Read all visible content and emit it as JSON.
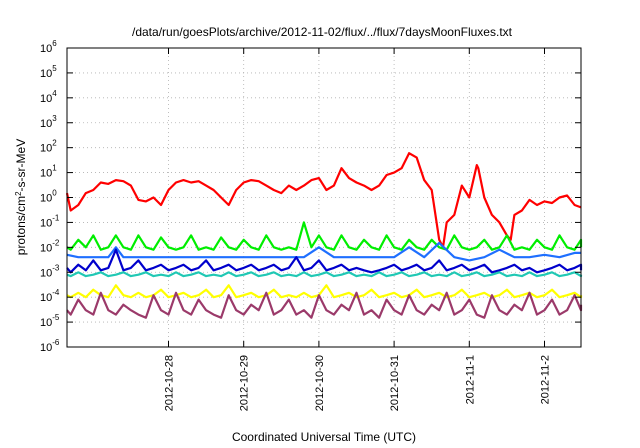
{
  "chart_data": {
    "type": "line",
    "title": "/data/run/goesPlots/archive/2012-11-02/flux/../flux/7daysMoonFluxes.txt",
    "xlabel": "Coordinated Universal Time (UTC)",
    "ylabel": {
      "base": "protons/cm",
      "sup": "2",
      "rest": "-s-sr-MeV"
    },
    "y_scale": "log",
    "ylim": [
      1e-06,
      1000000.0
    ],
    "y_ticks": [
      {
        "base": "10",
        "exp": "-6"
      },
      {
        "base": "10",
        "exp": "-5"
      },
      {
        "base": "10",
        "exp": "-4"
      },
      {
        "base": "10",
        "exp": "-3"
      },
      {
        "base": "10",
        "exp": "-2"
      },
      {
        "base": "10",
        "exp": "-1"
      },
      {
        "base": "10",
        "exp": "0"
      },
      {
        "base": "10",
        "exp": "1"
      },
      {
        "base": "10",
        "exp": "2"
      },
      {
        "base": "10",
        "exp": "3"
      },
      {
        "base": "10",
        "exp": "4"
      },
      {
        "base": "10",
        "exp": "5"
      },
      {
        "base": "10",
        "exp": "6"
      }
    ],
    "xlim_days": [
      -1.35,
      5.63
    ],
    "x_ticks": [
      "2012-10-28",
      "2012-10-29",
      "2012-10-30",
      "2012-10-31",
      "2012-11-1",
      "2012-11-2"
    ],
    "grid": true,
    "series": [
      {
        "color": "#ff0000",
        "t": [
          -1.35,
          -1.3,
          -1.2,
          -1.1,
          -1,
          -0.9,
          -0.8,
          -0.7,
          -0.6,
          -0.5,
          -0.4,
          -0.3,
          -0.2,
          -0.1,
          0,
          0.1,
          0.2,
          0.3,
          0.4,
          0.5,
          0.6,
          0.7,
          0.8,
          0.9,
          1,
          1.1,
          1.2,
          1.3,
          1.4,
          1.5,
          1.6,
          1.7,
          1.8,
          1.9,
          2,
          2.1,
          2.2,
          2.3,
          2.4,
          2.5,
          2.6,
          2.7,
          2.8,
          2.9,
          3,
          3.1,
          3.2,
          3.3,
          3.4,
          3.5,
          3.6,
          3.65,
          3.7,
          3.8,
          3.9,
          4,
          4.1,
          4.12,
          4.2,
          4.3,
          4.4,
          4.5,
          4.55,
          4.6,
          4.7,
          4.8,
          4.9,
          5,
          5.1,
          5.2,
          5.3,
          5.4,
          5.5,
          5.6
        ],
        "v": [
          1.5,
          0.3,
          0.5,
          1.5,
          2,
          4,
          3.5,
          5,
          4.5,
          3,
          0.8,
          0.7,
          1,
          0.5,
          2,
          4,
          5,
          4,
          4.5,
          3,
          2,
          1,
          0.5,
          2,
          4,
          5,
          4.5,
          3,
          2,
          1.5,
          3,
          2,
          3,
          5,
          6,
          2,
          3,
          15,
          6,
          4,
          3,
          2,
          3,
          8,
          10,
          15,
          60,
          40,
          5,
          2,
          0.02,
          0.01,
          0.1,
          0.2,
          3,
          1,
          20,
          15,
          1,
          0.2,
          0.1,
          0.03,
          0.02,
          0.2,
          0.3,
          0.8,
          0.5,
          0.7,
          0.6,
          1,
          1.2,
          0.5,
          0.4,
          0.4
        ]
      },
      {
        "color": "#00ee00",
        "t": [
          -1.35,
          -1.3,
          -1.2,
          -1.1,
          -1,
          -0.9,
          -0.8,
          -0.7,
          -0.6,
          -0.5,
          -0.4,
          -0.3,
          -0.2,
          -0.1,
          0,
          0.1,
          0.2,
          0.3,
          0.4,
          0.5,
          0.6,
          0.7,
          0.8,
          0.9,
          1,
          1.1,
          1.2,
          1.3,
          1.4,
          1.5,
          1.6,
          1.7,
          1.8,
          1.9,
          2,
          2.1,
          2.2,
          2.3,
          2.4,
          2.5,
          2.6,
          2.7,
          2.8,
          2.9,
          3,
          3.1,
          3.2,
          3.3,
          3.4,
          3.5,
          3.6,
          3.7,
          3.8,
          3.9,
          4,
          4.1,
          4.2,
          4.3,
          4.4,
          4.5,
          4.6,
          4.7,
          4.8,
          4.9,
          5,
          5.1,
          5.2,
          5.3,
          5.4,
          5.5,
          5.6
        ],
        "v": [
          0.01,
          0.008,
          0.02,
          0.01,
          0.03,
          0.008,
          0.01,
          0.03,
          0.01,
          0.008,
          0.03,
          0.01,
          0.008,
          0.025,
          0.01,
          0.008,
          0.01,
          0.03,
          0.008,
          0.01,
          0.008,
          0.025,
          0.01,
          0.008,
          0.02,
          0.01,
          0.008,
          0.03,
          0.01,
          0.008,
          0.01,
          0.008,
          0.1,
          0.01,
          0.03,
          0.01,
          0.008,
          0.03,
          0.01,
          0.008,
          0.02,
          0.01,
          0.008,
          0.03,
          0.01,
          0.008,
          0.02,
          0.01,
          0.008,
          0.02,
          0.01,
          0.008,
          0.03,
          0.01,
          0.008,
          0.01,
          0.02,
          0.008,
          0.01,
          0.03,
          0.008,
          0.01,
          0.008,
          0.02,
          0.01,
          0.008,
          0.03,
          0.01,
          0.008,
          0.02,
          0.01
        ]
      },
      {
        "color": "#1e6fff",
        "t": [
          -1.35,
          -1.2,
          -1,
          -0.8,
          -0.7,
          -0.6,
          -0.4,
          -0.2,
          0,
          0.2,
          0.4,
          0.6,
          0.8,
          1,
          1.2,
          1.4,
          1.6,
          1.8,
          2,
          2.2,
          2.4,
          2.6,
          2.8,
          3,
          3.2,
          3.4,
          3.6,
          3.8,
          4,
          4.2,
          4.4,
          4.6,
          4.8,
          5,
          5.2,
          5.4,
          5.6
        ],
        "v": [
          0.005,
          0.004,
          0.004,
          0.004,
          0.01,
          0.004,
          0.004,
          0.004,
          0.004,
          0.004,
          0.004,
          0.004,
          0.004,
          0.004,
          0.004,
          0.004,
          0.004,
          0.004,
          0.01,
          0.004,
          0.004,
          0.004,
          0.004,
          0.004,
          0.01,
          0.004,
          0.015,
          0.004,
          0.003,
          0.004,
          0.008,
          0.004,
          0.004,
          0.005,
          0.004,
          0.006,
          0.006
        ]
      },
      {
        "color": "#0000cc",
        "t": [
          -1.35,
          -1.3,
          -1.2,
          -1.1,
          -1,
          -0.9,
          -0.8,
          -0.7,
          -0.6,
          -0.5,
          -0.4,
          -0.3,
          -0.2,
          -0.1,
          0,
          0.1,
          0.2,
          0.3,
          0.4,
          0.5,
          0.6,
          0.7,
          0.8,
          0.9,
          1,
          1.1,
          1.2,
          1.3,
          1.4,
          1.5,
          1.6,
          1.7,
          1.8,
          1.9,
          2,
          2.1,
          2.2,
          2.3,
          2.4,
          2.5,
          2.6,
          2.7,
          2.8,
          2.9,
          3,
          3.1,
          3.2,
          3.3,
          3.4,
          3.5,
          3.6,
          3.7,
          3.8,
          3.9,
          4,
          4.1,
          4.2,
          4.3,
          4.4,
          4.5,
          4.6,
          4.7,
          4.8,
          4.9,
          5,
          5.1,
          5.2,
          5.3,
          5.4,
          5.5,
          5.6
        ],
        "v": [
          0.0015,
          0.001,
          0.002,
          0.0012,
          0.003,
          0.0012,
          0.0015,
          0.008,
          0.0012,
          0.0015,
          0.003,
          0.0012,
          0.0015,
          0.002,
          0.0012,
          0.0015,
          0.002,
          0.0012,
          0.0015,
          0.003,
          0.0012,
          0.0015,
          0.002,
          0.0012,
          0.0015,
          0.002,
          0.0012,
          0.0015,
          0.002,
          0.0012,
          0.0015,
          0.004,
          0.0012,
          0.0015,
          0.003,
          0.0012,
          0.0015,
          0.002,
          0.0012,
          0.0015,
          0.0012,
          0.001,
          0.0012,
          0.0015,
          0.002,
          0.0012,
          0.0015,
          0.002,
          0.0012,
          0.0015,
          0.003,
          0.0012,
          0.0015,
          0.002,
          0.0012,
          0.0015,
          0.002,
          0.001,
          0.0012,
          0.0015,
          0.002,
          0.0012,
          0.0015,
          0.001,
          0.0012,
          0.0015,
          0.002,
          0.0012,
          0.0015,
          0.002,
          0.0012
        ]
      },
      {
        "color": "#20c8b4",
        "t": [
          -1.35,
          -1.3,
          -1.2,
          -1.1,
          -1,
          -0.9,
          -0.8,
          -0.7,
          -0.6,
          -0.5,
          -0.4,
          -0.3,
          -0.2,
          -0.1,
          0,
          0.1,
          0.2,
          0.3,
          0.4,
          0.5,
          0.6,
          0.7,
          0.8,
          0.9,
          1,
          1.1,
          1.2,
          1.3,
          1.4,
          1.5,
          1.6,
          1.7,
          1.8,
          1.9,
          2,
          2.1,
          2.2,
          2.3,
          2.4,
          2.5,
          2.6,
          2.7,
          2.8,
          2.9,
          3,
          3.1,
          3.2,
          3.3,
          3.4,
          3.5,
          3.6,
          3.7,
          3.8,
          3.9,
          4,
          4.1,
          4.2,
          4.3,
          4.4,
          4.5,
          4.6,
          4.7,
          4.8,
          4.9,
          5,
          5.1,
          5.2,
          5.3,
          5.4,
          5.5,
          5.6
        ],
        "v": [
          0.0008,
          0.0007,
          0.001,
          0.0007,
          0.0008,
          0.001,
          0.0007,
          0.0008,
          0.001,
          0.0007,
          0.0008,
          0.001,
          0.0007,
          0.0008,
          0.0007,
          0.001,
          0.0007,
          0.0008,
          0.001,
          0.0007,
          0.0008,
          0.0007,
          0.001,
          0.0007,
          0.0008,
          0.001,
          0.0007,
          0.0008,
          0.001,
          0.0007,
          0.0008,
          0.0007,
          0.001,
          0.0007,
          0.0008,
          0.001,
          0.0007,
          0.0008,
          0.001,
          0.0007,
          0.0008,
          0.0007,
          0.001,
          0.0007,
          0.0008,
          0.001,
          0.0007,
          0.0008,
          0.001,
          0.0007,
          0.0008,
          0.0007,
          0.001,
          0.0007,
          0.0008,
          0.001,
          0.0007,
          0.0008,
          0.001,
          0.0007,
          0.0008,
          0.0007,
          0.001,
          0.0007,
          0.0008,
          0.001,
          0.0007,
          0.0008,
          0.001,
          0.0007,
          0.0008
        ]
      },
      {
        "color": "#ffff00",
        "t": [
          -1.35,
          -1.3,
          -1.2,
          -1.1,
          -1,
          -0.9,
          -0.8,
          -0.7,
          -0.6,
          -0.5,
          -0.4,
          -0.3,
          -0.2,
          -0.1,
          0,
          0.1,
          0.2,
          0.3,
          0.4,
          0.5,
          0.6,
          0.7,
          0.8,
          0.9,
          1,
          1.1,
          1.2,
          1.3,
          1.4,
          1.5,
          1.6,
          1.7,
          1.8,
          1.9,
          2,
          2.1,
          2.2,
          2.3,
          2.4,
          2.5,
          2.6,
          2.7,
          2.8,
          2.9,
          3,
          3.1,
          3.2,
          3.3,
          3.4,
          3.5,
          3.6,
          3.7,
          3.8,
          3.9,
          4,
          4.1,
          4.2,
          4.3,
          4.4,
          4.5,
          4.6,
          4.7,
          4.8,
          4.9,
          5,
          5.1,
          5.2,
          5.3,
          5.4,
          5.5,
          5.6
        ],
        "v": [
          0.00012,
          0.0001,
          0.00015,
          0.0001,
          0.0002,
          0.00012,
          0.0001,
          0.0003,
          0.00012,
          0.0001,
          0.00015,
          0.0001,
          0.00012,
          0.0002,
          0.0001,
          0.00012,
          0.00015,
          0.0001,
          0.00012,
          0.0002,
          0.0001,
          0.00012,
          0.0003,
          0.0001,
          0.00012,
          0.00015,
          0.0001,
          0.00012,
          0.0002,
          0.0001,
          0.00012,
          0.0001,
          0.00015,
          0.0001,
          0.00012,
          0.0003,
          0.0001,
          0.00012,
          0.00015,
          0.0001,
          0.00012,
          0.0002,
          0.0001,
          0.00012,
          0.00015,
          0.0001,
          0.00012,
          0.0002,
          0.0001,
          0.00012,
          0.00015,
          0.0001,
          0.00012,
          0.0002,
          0.0001,
          0.00012,
          0.00015,
          0.0001,
          0.00012,
          0.0002,
          0.0001,
          0.00012,
          0.00015,
          0.0001,
          0.00012,
          0.0002,
          0.0001,
          0.00012,
          0.00015,
          0.0001,
          0.00012
        ]
      },
      {
        "color": "#9b3a6a",
        "t": [
          -1.35,
          -1.3,
          -1.2,
          -1.1,
          -1,
          -0.9,
          -0.8,
          -0.7,
          -0.6,
          -0.5,
          -0.4,
          -0.3,
          -0.2,
          -0.1,
          0,
          0.1,
          0.2,
          0.3,
          0.4,
          0.5,
          0.6,
          0.7,
          0.8,
          0.9,
          1,
          1.1,
          1.2,
          1.3,
          1.4,
          1.5,
          1.6,
          1.7,
          1.8,
          1.9,
          2,
          2.1,
          2.2,
          2.3,
          2.4,
          2.5,
          2.6,
          2.7,
          2.8,
          2.9,
          3,
          3.1,
          3.2,
          3.3,
          3.4,
          3.5,
          3.6,
          3.7,
          3.8,
          3.9,
          4,
          4.1,
          4.2,
          4.3,
          4.4,
          4.5,
          4.6,
          4.7,
          4.8,
          4.9,
          5,
          5.1,
          5.2,
          5.3,
          5.4,
          5.5,
          5.6
        ],
        "v": [
          3e-05,
          2e-05,
          8e-05,
          3e-05,
          2e-05,
          0.00015,
          3e-05,
          2e-05,
          5e-05,
          3e-05,
          2e-05,
          1.5e-05,
          0.00012,
          3e-05,
          2e-05,
          0.00015,
          3e-05,
          2e-05,
          8e-05,
          3e-05,
          2e-05,
          1.5e-05,
          0.00012,
          3e-05,
          2e-05,
          5e-05,
          3e-05,
          0.00015,
          2e-05,
          3e-05,
          8e-05,
          2e-05,
          3e-05,
          1.5e-05,
          0.00012,
          3e-05,
          2e-05,
          5e-05,
          3e-05,
          0.00015,
          2e-05,
          3e-05,
          1.5e-05,
          8e-05,
          3e-05,
          2e-05,
          0.00012,
          3e-05,
          2e-05,
          5e-05,
          3e-05,
          0.00015,
          2e-05,
          3e-05,
          8e-05,
          2e-05,
          1.5e-05,
          0.00012,
          3e-05,
          2e-05,
          5e-05,
          3e-05,
          0.00015,
          2e-05,
          3e-05,
          8e-05,
          2e-05,
          3e-05,
          0.00012,
          3e-05,
          5e-05
        ]
      }
    ]
  }
}
